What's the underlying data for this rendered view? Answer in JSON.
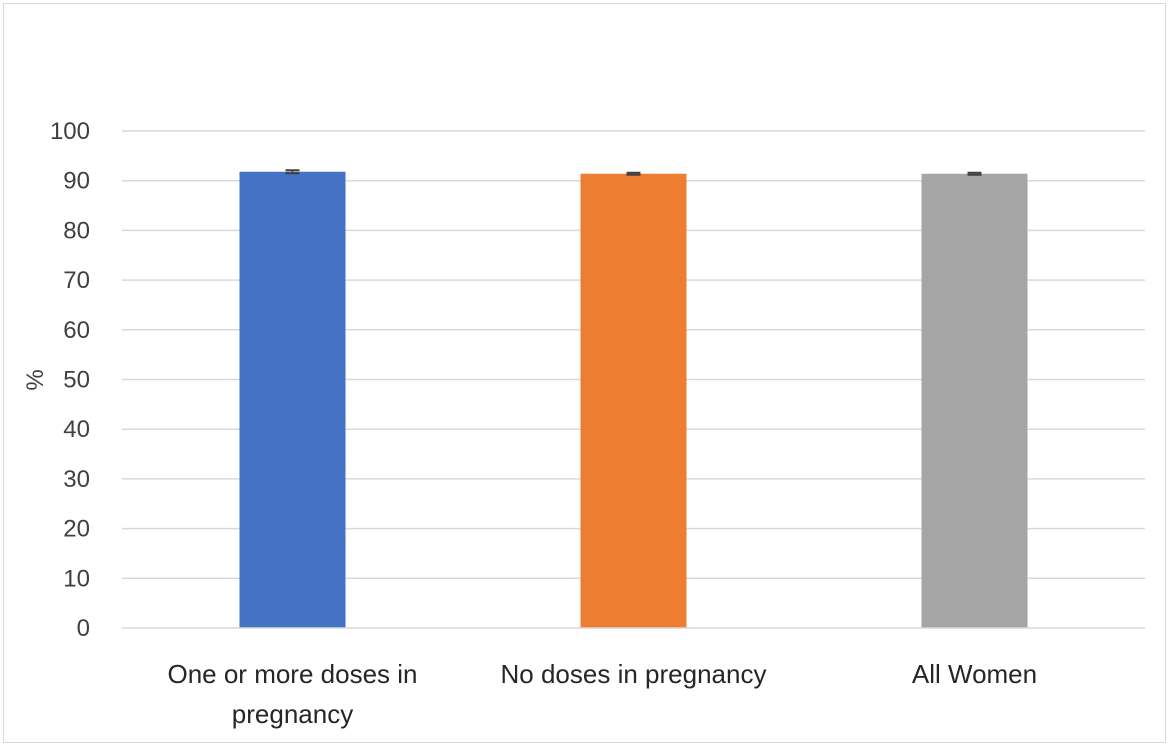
{
  "chart_data": {
    "type": "bar",
    "title": "",
    "xlabel": "",
    "ylabel": "%",
    "ylim": [
      0,
      100
    ],
    "yticks": [
      "0",
      "10",
      "20",
      "30",
      "40",
      "50",
      "60",
      "70",
      "80",
      "90",
      "100"
    ],
    "grid": true,
    "legend": "none",
    "categories": [
      [
        "One or more doses in",
        "pregnancy"
      ],
      [
        "No doses in pregnancy"
      ],
      [
        "All Women"
      ]
    ],
    "values": [
      91.8,
      91.4,
      91.4
    ],
    "error": [
      0.3,
      0.2,
      0.2
    ],
    "colors": [
      "#4472c4",
      "#ed7d31",
      "#a5a5a5"
    ],
    "gridline_color": "#d9d9d9",
    "errorbar_color": "#404040"
  }
}
